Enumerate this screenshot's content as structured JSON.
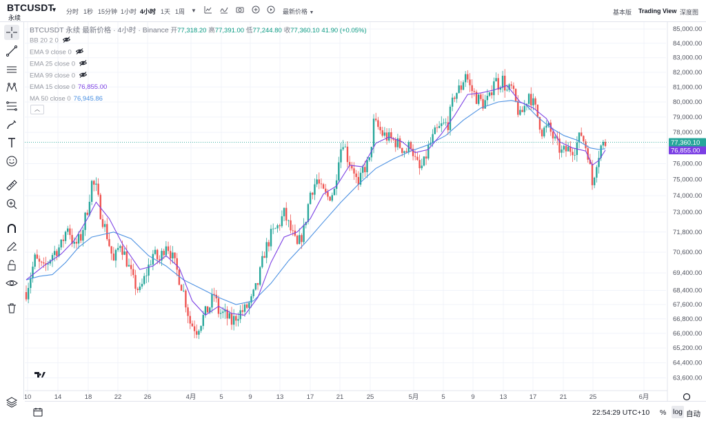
{
  "header": {
    "symbol": "BTCUSDT",
    "contract": "永续",
    "timeframes": [
      "分时",
      "1秒",
      "15分钟",
      "1小时",
      "4小时",
      "1天",
      "1周"
    ],
    "active_timeframe": "4小时",
    "price_type": "最新价格",
    "views": [
      "基本版",
      "Trading View",
      "深度图"
    ],
    "active_view": "Trading View"
  },
  "legend": {
    "title": "BTCUSDT 永续 最新价格 · 4小时 · Binance",
    "open_label": "开",
    "open": "77,318.20",
    "high_label": "高",
    "high": "77,391.00",
    "low_label": "低",
    "low": "77,244.80",
    "close_label": "收",
    "close": "77,360.10",
    "change": "41.90 (+0.05%)",
    "indicators": [
      {
        "label": "BB 20 2 0",
        "value": "",
        "color": "#9598a1",
        "hidden": true
      },
      {
        "label": "EMA 9 close 0",
        "value": "",
        "color": "#9598a1",
        "hidden": true
      },
      {
        "label": "EMA 25 close 0",
        "value": "",
        "color": "#9598a1",
        "hidden": true
      },
      {
        "label": "EMA 99 close 0",
        "value": "",
        "color": "#9598a1",
        "hidden": true
      },
      {
        "label": "EMA 15 close 0",
        "value": "76,855.00",
        "color": "#7b3fe4",
        "hidden": false
      },
      {
        "label": "MA 50 close 0",
        "value": "76,945.86",
        "color": "#4a90e2",
        "hidden": false
      }
    ]
  },
  "footer": {
    "time": "22:54:29 UTC+10",
    "percent_label": "%",
    "log_label": "log",
    "auto_label": "自动"
  },
  "colors": {
    "up": "#26a69a",
    "down": "#ef5350",
    "ema15": "#7b3fe4",
    "ma50": "#4a90e2",
    "last_price_tag": "#26a69a"
  },
  "chart_data": {
    "type": "candlestick",
    "scale": "log",
    "y_ticks": [
      "85,000.00",
      "84,000.00",
      "83,000.00",
      "82,000.00",
      "81,000.00",
      "80,000.00",
      "79,000.00",
      "78,000.00",
      "77,000.00",
      "76,000.00",
      "75,000.00",
      "74,000.00",
      "73,000.00",
      "71,800.00",
      "70,600.00",
      "69,400.00",
      "68,400.00",
      "67,600.00",
      "66,800.00",
      "66,000.00",
      "65,200.00",
      "64,400.00",
      "63,600.00"
    ],
    "x_ticks": [
      "10",
      "14",
      "18",
      "22",
      "26",
      "4月",
      "5",
      "9",
      "13",
      "17",
      "21",
      "25",
      "5月",
      "5",
      "9",
      "13",
      "17",
      "21",
      "25",
      "6月"
    ],
    "ylim": [
      63000,
      85300
    ],
    "last_price": "77,360.10",
    "ma50_value": "76,945.86",
    "ema15_value": "76,855.00",
    "close_path": [
      [
        0,
        68300
      ],
      [
        4,
        70200
      ],
      [
        8,
        69600
      ],
      [
        12,
        70500
      ],
      [
        16,
        71000
      ],
      [
        19,
        72200
      ],
      [
        22,
        70900
      ],
      [
        25,
        71500
      ],
      [
        28,
        73200
      ],
      [
        30,
        74800
      ],
      [
        32,
        74400
      ],
      [
        34,
        73000
      ],
      [
        37,
        71600
      ],
      [
        40,
        70000
      ],
      [
        43,
        71200
      ],
      [
        46,
        70100
      ],
      [
        49,
        68900
      ],
      [
        52,
        68300
      ],
      [
        55,
        69400
      ],
      [
        58,
        70500
      ],
      [
        61,
        70100
      ],
      [
        64,
        71200
      ],
      [
        66,
        70600
      ],
      [
        69,
        69500
      ],
      [
        72,
        68300
      ],
      [
        75,
        66600
      ],
      [
        78,
        66200
      ],
      [
        81,
        66900
      ],
      [
        84,
        67500
      ],
      [
        86,
        68200
      ],
      [
        88,
        67200
      ],
      [
        91,
        67000
      ],
      [
        94,
        66600
      ],
      [
        97,
        67100
      ],
      [
        100,
        67300
      ],
      [
        103,
        67800
      ],
      [
        106,
        68800
      ],
      [
        109,
        70600
      ],
      [
        112,
        71600
      ],
      [
        115,
        72100
      ],
      [
        118,
        72900
      ],
      [
        121,
        71900
      ],
      [
        124,
        70900
      ],
      [
        127,
        71900
      ],
      [
        130,
        74200
      ],
      [
        133,
        75000
      ],
      [
        135,
        74300
      ],
      [
        138,
        73900
      ],
      [
        141,
        74300
      ],
      [
        143,
        76500
      ],
      [
        145,
        77500
      ],
      [
        147,
        76400
      ],
      [
        150,
        75600
      ],
      [
        152,
        74400
      ],
      [
        154,
        75600
      ],
      [
        157,
        76100
      ],
      [
        159,
        78600
      ],
      [
        161,
        78300
      ],
      [
        163,
        77900
      ],
      [
        166,
        77600
      ],
      [
        169,
        77400
      ],
      [
        172,
        77000
      ],
      [
        174,
        76800
      ],
      [
        176,
        77300
      ],
      [
        178,
        76200
      ],
      [
        180,
        75600
      ],
      [
        182,
        76000
      ],
      [
        184,
        77000
      ],
      [
        187,
        77900
      ],
      [
        190,
        78400
      ],
      [
        193,
        78600
      ],
      [
        196,
        80500
      ],
      [
        199,
        81000
      ],
      [
        201,
        82000
      ],
      [
        203,
        81000
      ],
      [
        206,
        80300
      ],
      [
        209,
        79900
      ],
      [
        212,
        80200
      ],
      [
        214,
        81600
      ],
      [
        216,
        81200
      ],
      [
        218,
        81500
      ],
      [
        220,
        80700
      ],
      [
        222,
        80900
      ],
      [
        224,
        79900
      ],
      [
        226,
        79000
      ],
      [
        228,
        79700
      ],
      [
        230,
        80600
      ],
      [
        233,
        79500
      ],
      [
        236,
        78100
      ],
      [
        239,
        78300
      ],
      [
        242,
        77400
      ],
      [
        245,
        76700
      ],
      [
        248,
        76900
      ],
      [
        251,
        77000
      ],
      [
        254,
        77900
      ],
      [
        257,
        76700
      ],
      [
        259,
        74700
      ],
      [
        261,
        76200
      ],
      [
        263,
        77100
      ],
      [
        265,
        77300
      ]
    ],
    "ema15_path": [
      [
        0,
        69000
      ],
      [
        8,
        69800
      ],
      [
        16,
        70500
      ],
      [
        22,
        71300
      ],
      [
        28,
        72600
      ],
      [
        32,
        73600
      ],
      [
        38,
        72600
      ],
      [
        44,
        71100
      ],
      [
        52,
        69600
      ],
      [
        58,
        69800
      ],
      [
        64,
        70400
      ],
      [
        70,
        69700
      ],
      [
        76,
        67800
      ],
      [
        82,
        67000
      ],
      [
        88,
        67500
      ],
      [
        94,
        67100
      ],
      [
        100,
        67000
      ],
      [
        106,
        68000
      ],
      [
        112,
        70000
      ],
      [
        118,
        71500
      ],
      [
        124,
        71800
      ],
      [
        130,
        72600
      ],
      [
        136,
        74100
      ],
      [
        142,
        74600
      ],
      [
        148,
        75900
      ],
      [
        154,
        75800
      ],
      [
        160,
        77300
      ],
      [
        166,
        77700
      ],
      [
        172,
        77400
      ],
      [
        178,
        76700
      ],
      [
        184,
        76900
      ],
      [
        190,
        77900
      ],
      [
        196,
        79100
      ],
      [
        202,
        80500
      ],
      [
        208,
        80600
      ],
      [
        214,
        80800
      ],
      [
        220,
        81100
      ],
      [
        226,
        80000
      ],
      [
        232,
        79600
      ],
      [
        238,
        78900
      ],
      [
        244,
        77400
      ],
      [
        250,
        77000
      ],
      [
        256,
        76800
      ],
      [
        259,
        75900
      ],
      [
        262,
        76200
      ],
      [
        265,
        76855
      ]
    ],
    "ma50_path": [
      [
        0,
        69000
      ],
      [
        6,
        69200
      ],
      [
        12,
        69300
      ],
      [
        18,
        70000
      ],
      [
        24,
        70900
      ],
      [
        30,
        71500
      ],
      [
        40,
        71800
      ],
      [
        48,
        71400
      ],
      [
        56,
        70400
      ],
      [
        64,
        69800
      ],
      [
        72,
        69000
      ],
      [
        80,
        68500
      ],
      [
        88,
        68000
      ],
      [
        96,
        67600
      ],
      [
        104,
        67800
      ],
      [
        112,
        68800
      ],
      [
        120,
        70100
      ],
      [
        128,
        71200
      ],
      [
        136,
        72400
      ],
      [
        144,
        73600
      ],
      [
        152,
        74700
      ],
      [
        160,
        75700
      ],
      [
        168,
        76300
      ],
      [
        176,
        76800
      ],
      [
        184,
        77200
      ],
      [
        192,
        77800
      ],
      [
        200,
        78800
      ],
      [
        208,
        79600
      ],
      [
        216,
        80000
      ],
      [
        222,
        80100
      ],
      [
        228,
        79900
      ],
      [
        234,
        79000
      ],
      [
        240,
        78300
      ],
      [
        246,
        77800
      ],
      [
        252,
        77500
      ],
      [
        258,
        77000
      ],
      [
        262,
        76900
      ],
      [
        265,
        76946
      ]
    ]
  }
}
